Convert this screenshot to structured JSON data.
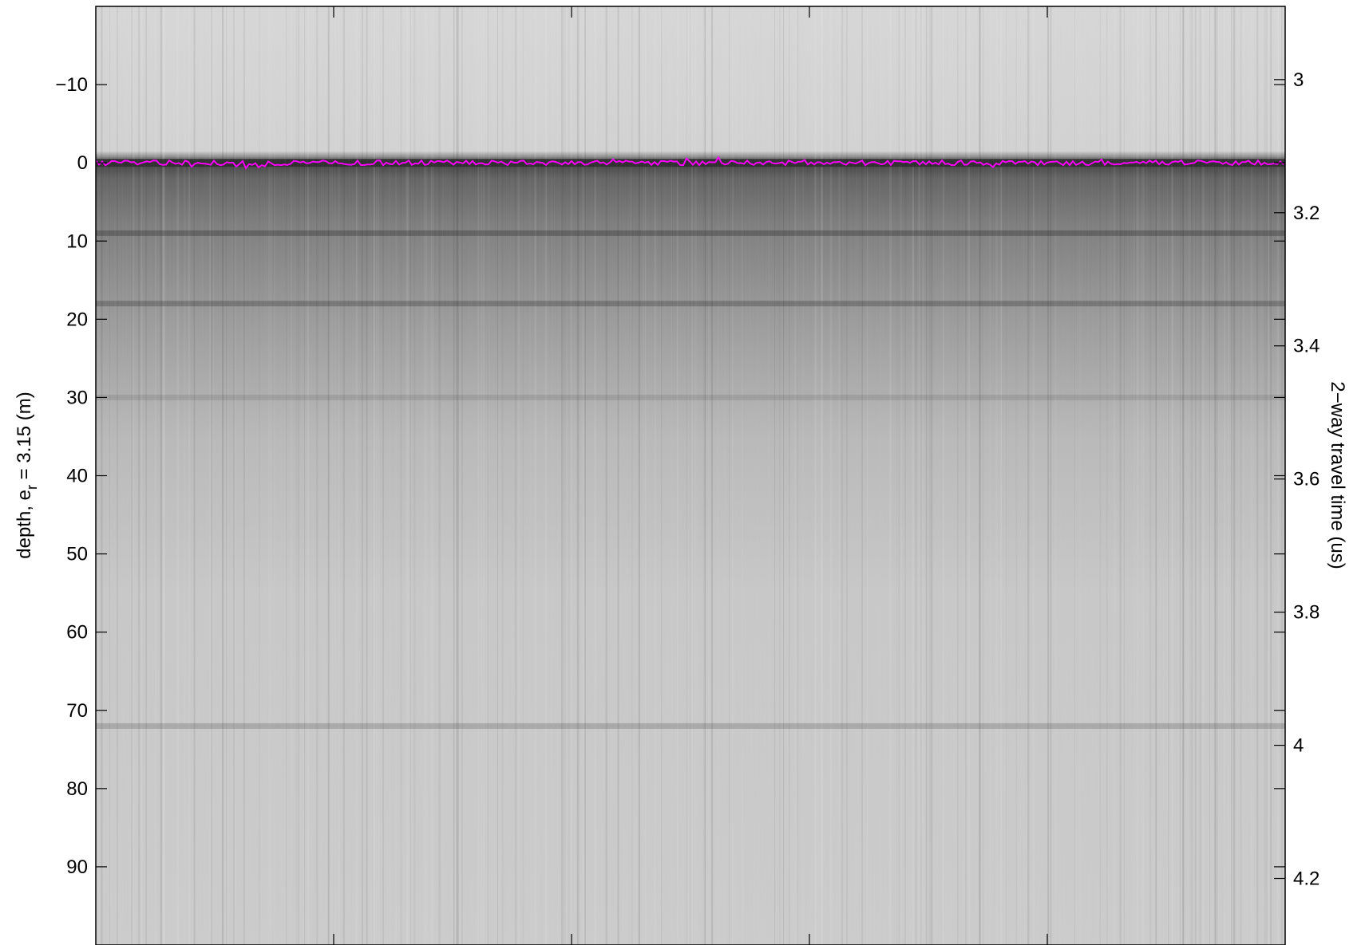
{
  "chart_data": {
    "type": "heatmap",
    "title": "",
    "colormap": "grayscale",
    "left_axis": {
      "label_prefix": "depth, e",
      "label_subscript": "r",
      "label_suffix": " = 3.15 (m)",
      "range": [
        -20,
        100
      ],
      "reversed": true,
      "ticks": [
        -10,
        0,
        10,
        20,
        30,
        40,
        50,
        60,
        70,
        80,
        90
      ],
      "tick_labels": [
        "−10",
        "0",
        "10",
        "20",
        "30",
        "40",
        "50",
        "60",
        "70",
        "80",
        "90"
      ]
    },
    "right_axis": {
      "label": "2−way travel time (us)",
      "range": [
        2.89,
        4.3
      ],
      "reversed": true,
      "ticks": [
        3.0,
        3.2,
        3.4,
        3.6,
        3.8,
        4.0,
        4.2
      ],
      "tick_labels": [
        "3",
        "3.2",
        "3.4",
        "3.6",
        "3.8",
        "4",
        "4.2"
      ]
    },
    "x_axis": {
      "tick_count": 5,
      "tick_labels": []
    },
    "bands": [
      {
        "depth": 0,
        "strength": 0.85,
        "name": "surface reflection"
      },
      {
        "depth": 9,
        "strength": 0.35
      },
      {
        "depth": 18,
        "strength": 0.3
      },
      {
        "depth": 30,
        "strength": 0.12
      },
      {
        "depth": 72,
        "strength": 0.2
      }
    ],
    "overlay": {
      "name": "picked surface",
      "color": "#ff00ff",
      "depth": 0
    },
    "grid": false,
    "legend": "none"
  }
}
